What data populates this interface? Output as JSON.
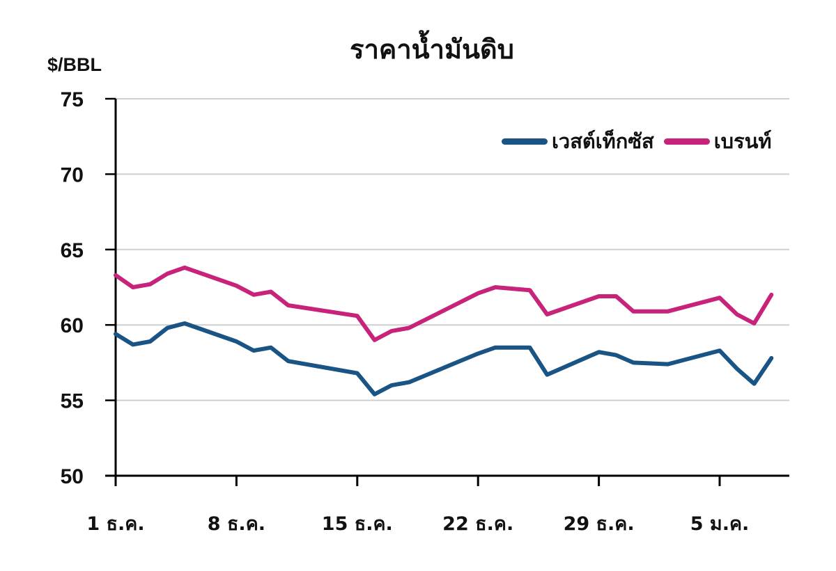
{
  "chart_data": {
    "type": "line",
    "title": "ราคาน้ำมันดิบ",
    "ylabel": "$/BBL",
    "xlabel": "",
    "ylim": [
      50,
      75
    ],
    "yticks": [
      50,
      55,
      60,
      65,
      70,
      75
    ],
    "xtick_labels": [
      "1 ธ.ค.",
      "8 ธ.ค.",
      "15 ธ.ค.",
      "22 ธ.ค.",
      "29 ธ.ค.",
      "5 ม.ค."
    ],
    "grid": "horizontal",
    "legend_position": "upper right",
    "x": [
      "1 ธ.ค.",
      "2 ธ.ค.",
      "3 ธ.ค.",
      "4 ธ.ค.",
      "5 ธ.ค.",
      "8 ธ.ค.",
      "9 ธ.ค.",
      "10 ธ.ค.",
      "11 ธ.ค.",
      "15 ธ.ค.",
      "16 ธ.ค.",
      "17 ธ.ค.",
      "18 ธ.ค.",
      "22 ธ.ค.",
      "23 ธ.ค.",
      "25 ธ.ค.",
      "26 ธ.ค.",
      "29 ธ.ค.",
      "30 ธ.ค.",
      "31 ธ.ค.",
      "2 ม.ค.",
      "5 ม.ค.",
      "6 ม.ค.",
      "7 ม.ค.",
      "8 ม.ค."
    ],
    "x_days": [
      0,
      1,
      2,
      3,
      4,
      7,
      8,
      9,
      10,
      14,
      15,
      16,
      17,
      21,
      22,
      24,
      25,
      28,
      29,
      30,
      32,
      35,
      36,
      37,
      38
    ],
    "series": [
      {
        "name": "เวสต์เท็กซัส",
        "color": "#1a5485",
        "values": [
          59.4,
          58.7,
          58.9,
          59.8,
          60.1,
          58.9,
          58.3,
          58.5,
          57.6,
          56.8,
          55.4,
          56.0,
          56.2,
          58.1,
          58.5,
          58.5,
          56.7,
          58.2,
          58.0,
          57.5,
          57.4,
          58.3,
          57.1,
          56.1,
          57.8
        ]
      },
      {
        "name": "เบรนท์",
        "color": "#c8237a",
        "values": [
          63.3,
          62.5,
          62.7,
          63.4,
          63.8,
          62.6,
          62.0,
          62.2,
          61.3,
          60.6,
          59.0,
          59.6,
          59.8,
          62.1,
          62.5,
          62.3,
          60.7,
          61.9,
          61.9,
          60.9,
          60.9,
          61.8,
          60.7,
          60.1,
          62.0
        ]
      }
    ]
  }
}
